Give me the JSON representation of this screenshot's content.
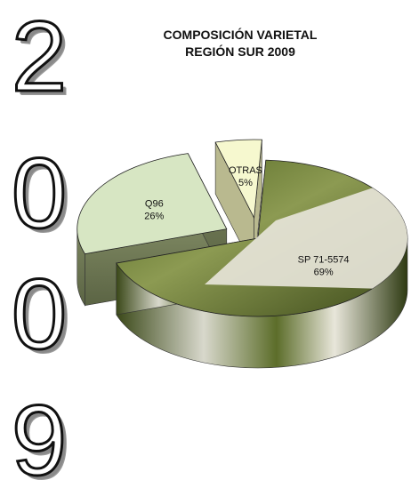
{
  "year_digits": [
    "2",
    "0",
    "0",
    "9"
  ],
  "title_line1": "COMPOSICIÓN VARIETAL",
  "title_line2": "REGIÓN SUR 2009",
  "colors": {
    "q96": "#d7e6c3",
    "otras": "#f6f8cf",
    "sp": "#7a8a45",
    "stalk_white": "#e6e4d8"
  },
  "chart_data": {
    "type": "pie",
    "title": "COMPOSICIÓN VARIETAL REGIÓN SUR 2009",
    "slices": [
      {
        "label": "SP 71-5574",
        "value": 69,
        "value_text": "69%"
      },
      {
        "label": "Q96",
        "value": 26,
        "value_text": "26%"
      },
      {
        "label": "OTRAS",
        "value": 5,
        "value_text": "5%"
      }
    ]
  }
}
